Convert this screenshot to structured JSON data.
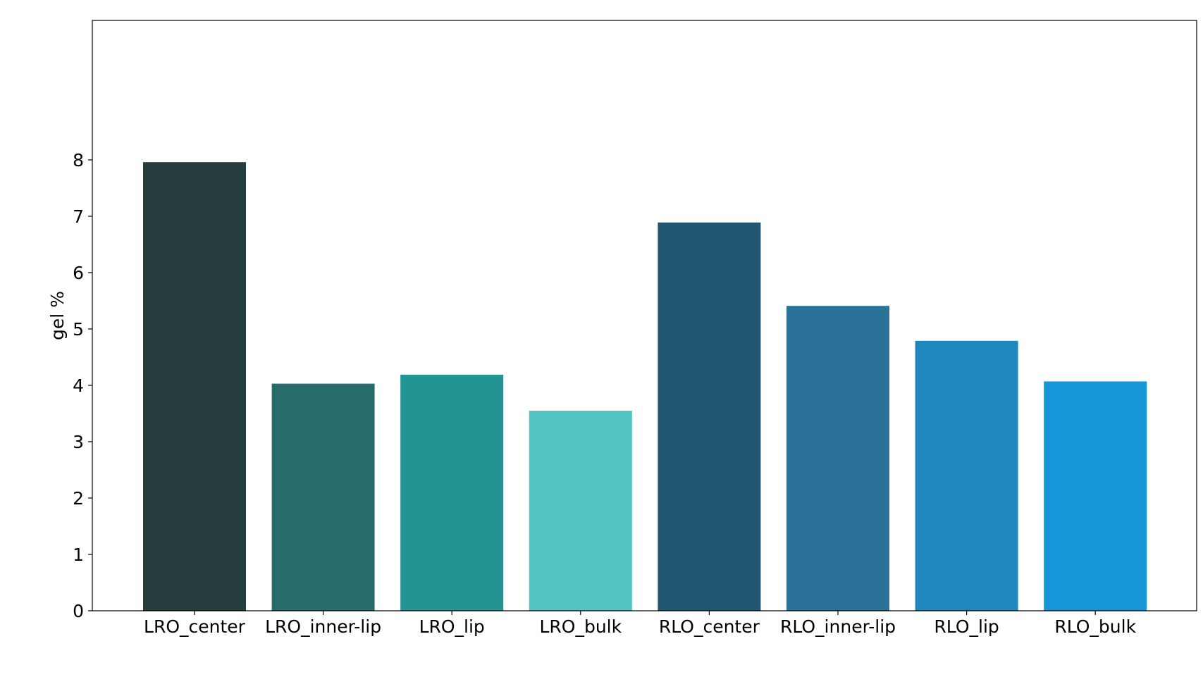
{
  "chart_data": {
    "type": "bar",
    "title": "",
    "xlabel": "",
    "ylabel": "gel %",
    "ylim": [
      0,
      8.3
    ],
    "yticks": [
      "0",
      "1",
      "2",
      "3",
      "4",
      "5",
      "6",
      "7",
      "8"
    ],
    "grid": false,
    "categories": [
      "LRO_center",
      "LRO_inner-lip",
      "LRO_lip",
      "LRO_bulk",
      "RLO_center",
      "RLO_inner-lip",
      "RLO_lip",
      "RLO_bulk"
    ],
    "values": [
      7.96,
      4.03,
      4.19,
      3.55,
      6.89,
      5.41,
      4.79,
      4.07
    ],
    "colors": [
      "#263d3e",
      "#286b6b",
      "#219493",
      "#52c3c3",
      "#205670",
      "#2a7298",
      "#1e88bc",
      "#1797d9"
    ]
  }
}
